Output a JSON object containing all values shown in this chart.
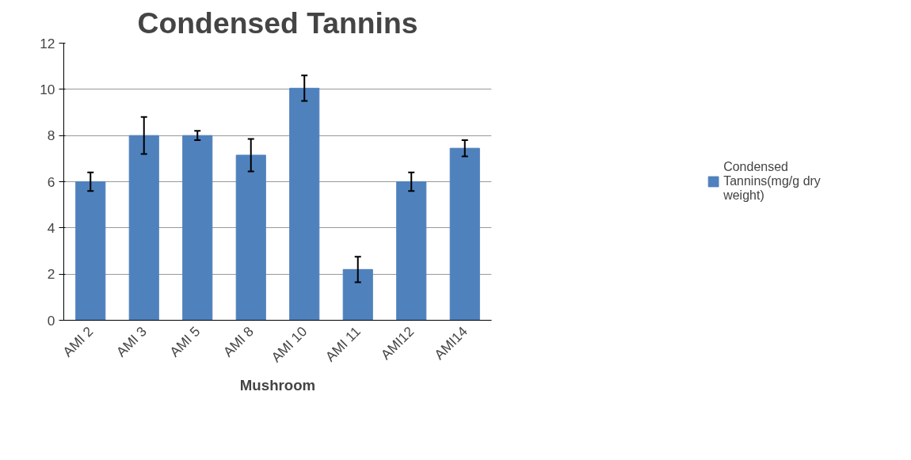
{
  "chart_data": {
    "type": "bar",
    "title": "Condensed Tannins",
    "xlabel": "Mushroom",
    "categories": [
      "AMI 2",
      "AMI 3",
      "AMI 5",
      "AMI 8",
      "AMI 10",
      "AMI 11",
      "AMI12",
      "AMI14"
    ],
    "series": [
      {
        "name": "Condensed Tannins(mg/g dry weight)",
        "color": "#4f81bd",
        "values": [
          6.0,
          8.0,
          8.0,
          7.15,
          10.05,
          2.2,
          6.0,
          7.45
        ],
        "errors": [
          0.4,
          0.8,
          0.2,
          0.7,
          0.55,
          0.55,
          0.4,
          0.35
        ]
      }
    ],
    "ylim": [
      0,
      12
    ],
    "yticks": [
      0,
      2,
      4,
      6,
      8,
      10,
      12
    ],
    "grid": "y",
    "legend": "right"
  }
}
